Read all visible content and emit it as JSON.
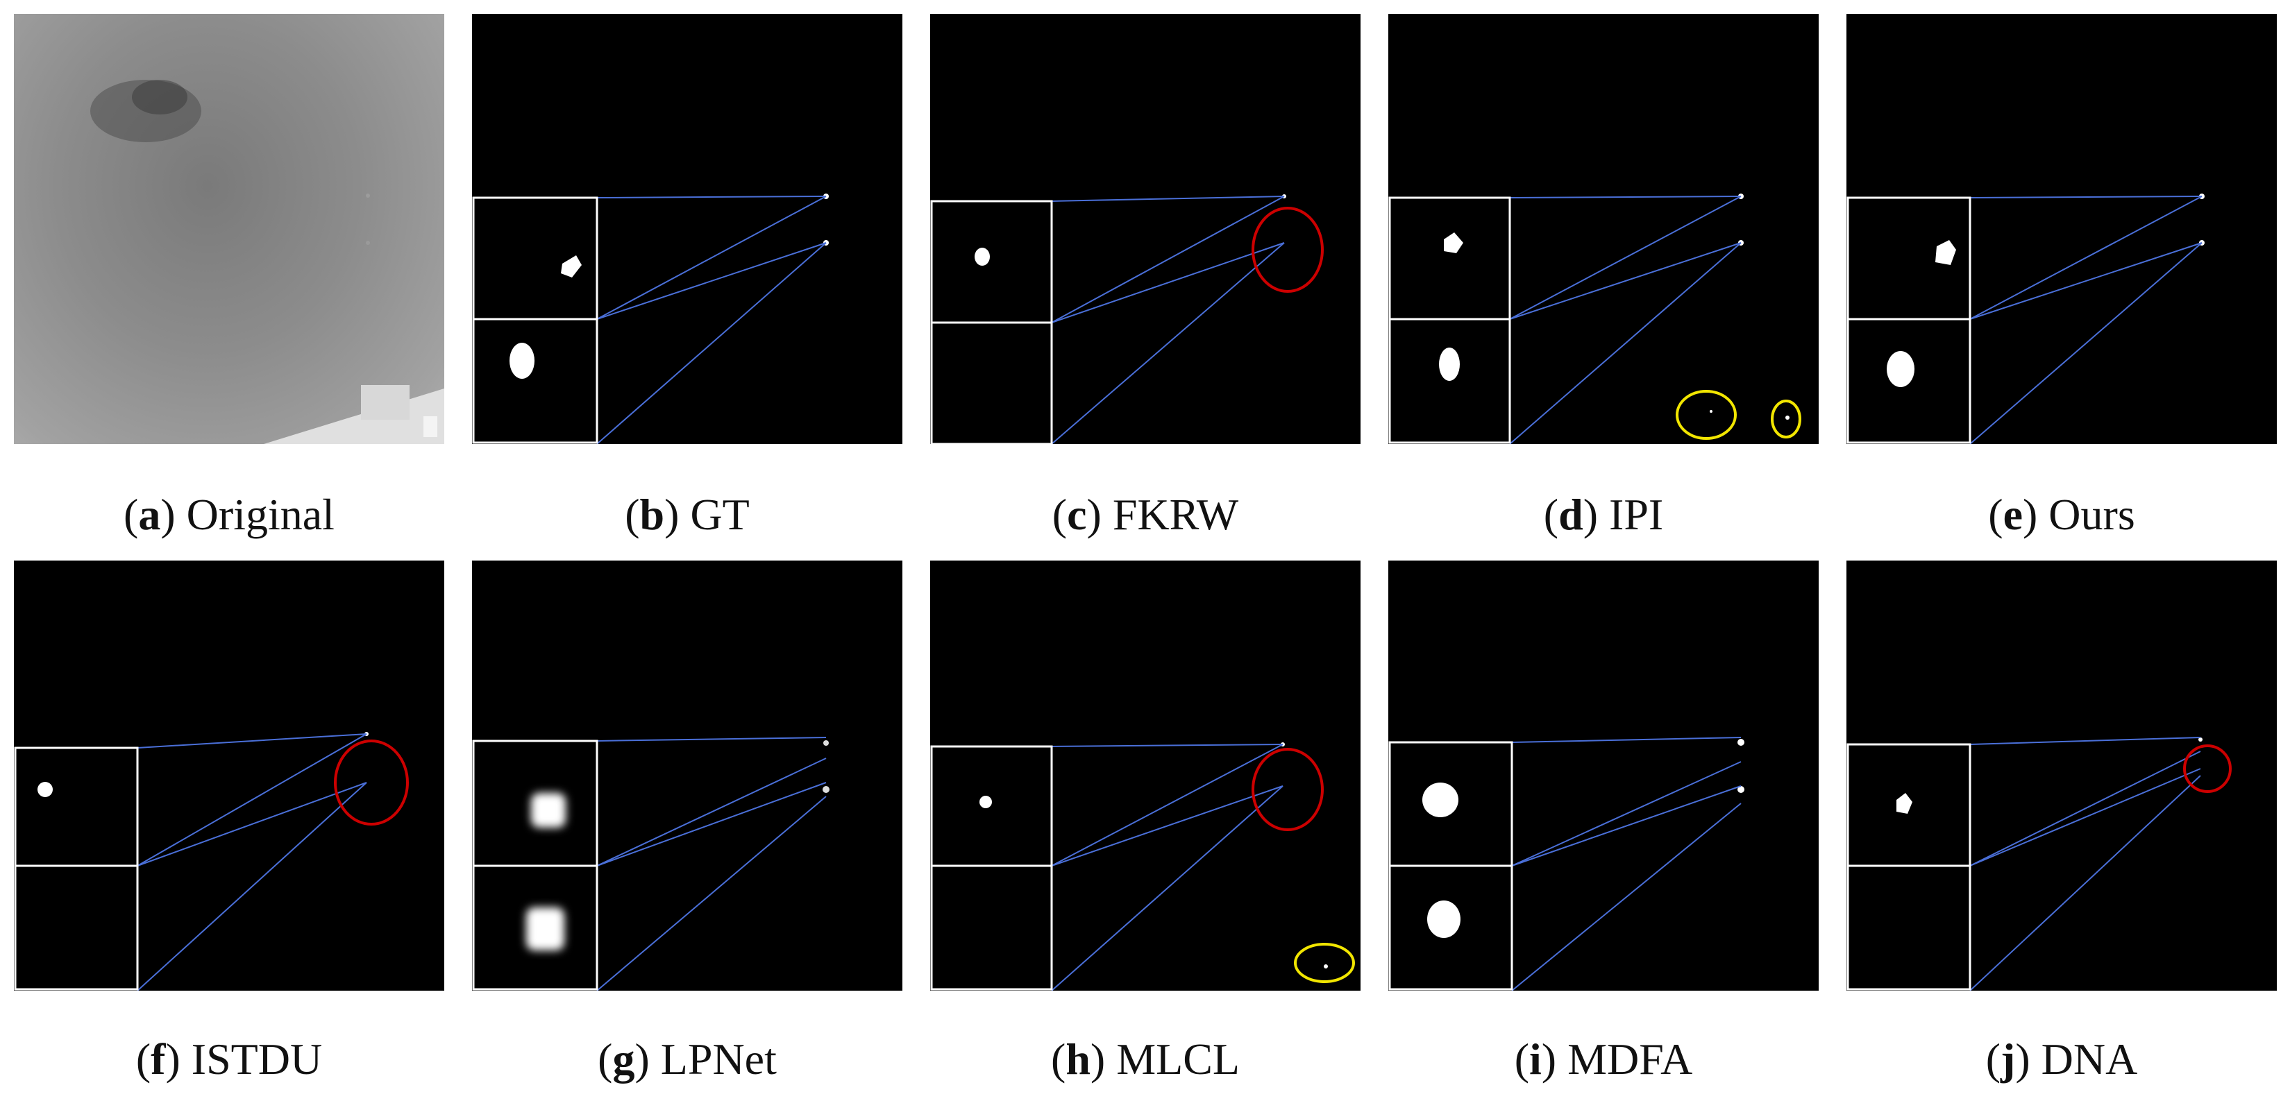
{
  "panels": [
    {
      "letter": "a",
      "label": "Original"
    },
    {
      "letter": "b",
      "label": "GT"
    },
    {
      "letter": "c",
      "label": "FKRW"
    },
    {
      "letter": "d",
      "label": "IPI"
    },
    {
      "letter": "e",
      "label": "Ours"
    },
    {
      "letter": "f",
      "label": "ISTDU"
    },
    {
      "letter": "g",
      "label": "LPNet"
    },
    {
      "letter": "h",
      "label": "MLCL"
    },
    {
      "letter": "i",
      "label": "MDFA"
    },
    {
      "letter": "j",
      "label": "DNA"
    }
  ],
  "colors": {
    "missed_detection_marker": "#cc0000",
    "false_alarm_marker": "#f2e600",
    "zoom_line": "#4a6fd8",
    "zoom_box": "#ffffff"
  }
}
